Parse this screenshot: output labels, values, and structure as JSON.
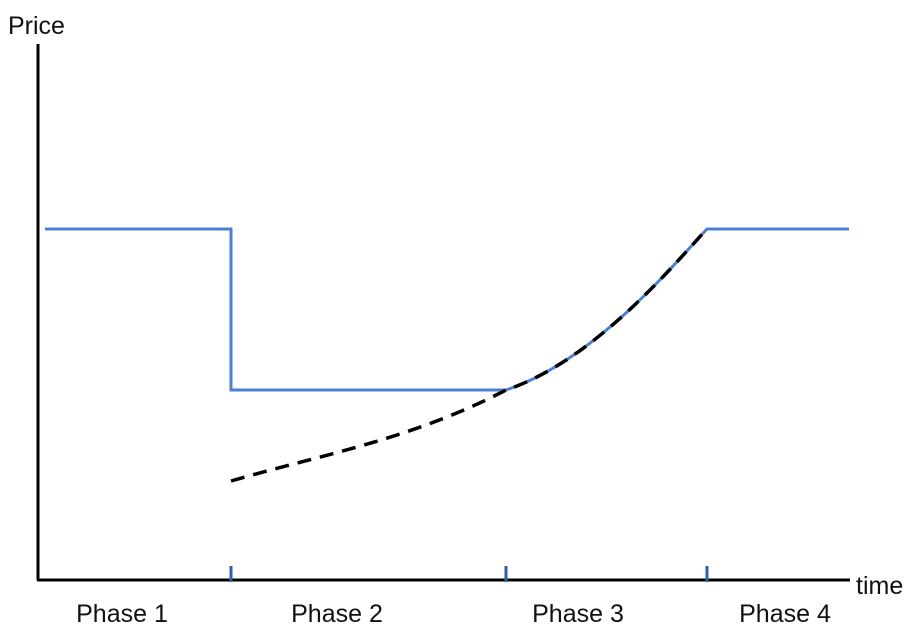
{
  "axes": {
    "y_label": "Price",
    "x_label": "time"
  },
  "phases": [
    {
      "label": "Phase 1"
    },
    {
      "label": "Phase 2"
    },
    {
      "label": "Phase 3"
    },
    {
      "label": "Phase 4"
    }
  ],
  "colors": {
    "axis": "#000000",
    "price_line": "#4a7fd4",
    "dashed_line": "#000000",
    "phase_ticks": "#2f5fa8"
  }
}
